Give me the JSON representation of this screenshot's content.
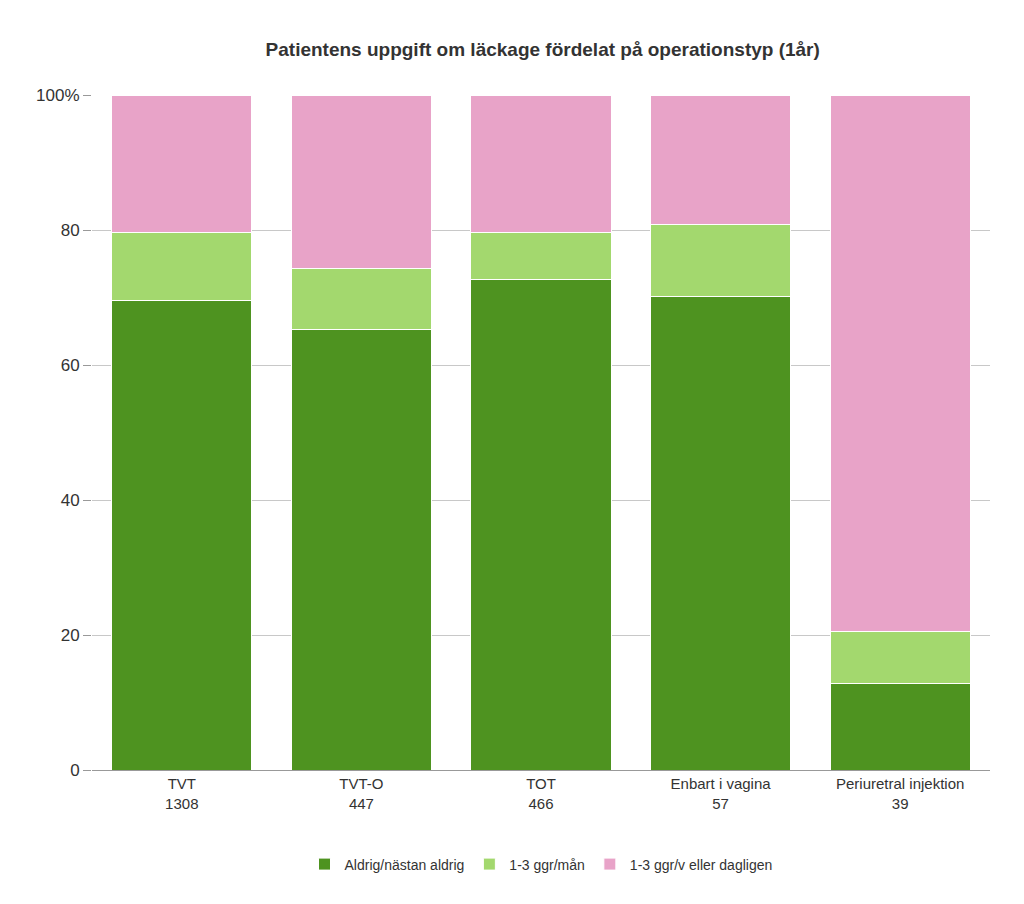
{
  "chart_data": {
    "type": "bar",
    "title": "Patientens uppgift om läckage fördelat på operationstyp (1år)",
    "categories": [
      "TVT\n1308",
      "TVT-O\n447",
      "TOT\n466",
      "Enbart i vagina\n57",
      "Periuretral injektion\n39"
    ],
    "series": [
      {
        "name": "Aldrig/nästan aldrig",
        "color": "#4e9320",
        "values": [
          69.5,
          65.2,
          72.6,
          70.2,
          12.8
        ]
      },
      {
        "name": "1-3 ggr/mån",
        "color": "#a3d86e",
        "values": [
          10.2,
          9.1,
          7.1,
          10.6,
          7.7
        ]
      },
      {
        "name": "1-3 ggr/v eller dagligen",
        "color": "#e8a3c8",
        "values": [
          20.3,
          25.7,
          20.3,
          19.2,
          79.5
        ]
      }
    ],
    "stacked": true,
    "ylim": [
      0,
      100
    ],
    "yticks": [
      0,
      20,
      40,
      60,
      80,
      {
        "value": 100,
        "label": "100%"
      }
    ],
    "grid": true,
    "legend": "bottom"
  }
}
